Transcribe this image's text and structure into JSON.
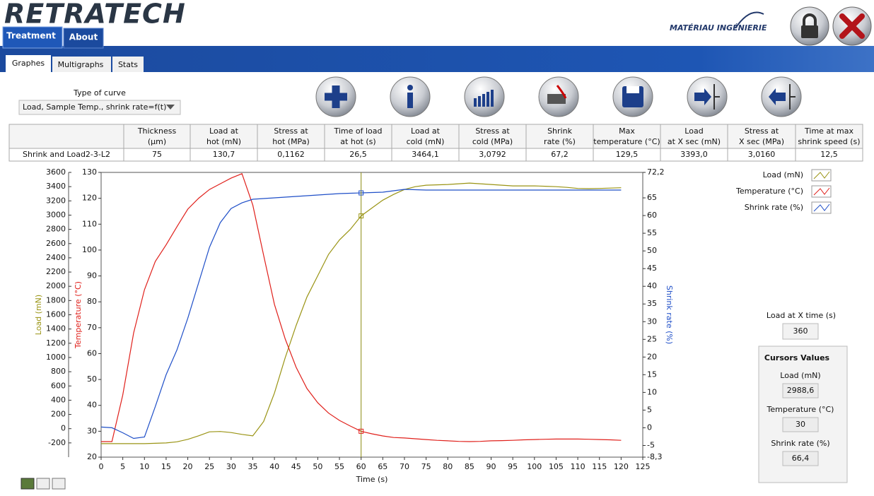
{
  "header": {
    "logo": "RETRATECH",
    "partner_logo": "MATÉRIAU INGÉNIERIE"
  },
  "tabs": [
    "Treatment",
    "About"
  ],
  "subtabs": [
    "Graphes",
    "Multigraphs",
    "Stats"
  ],
  "curve_selector": {
    "label": "Type of curve",
    "value": "Load, Sample Temp., shrink rate=f(t)"
  },
  "table": {
    "headers": [
      [
        "Thickness",
        "(µm)"
      ],
      [
        "Load at",
        "hot (mN)"
      ],
      [
        "Stress at",
        "hot (MPa)"
      ],
      [
        "Time of load",
        "at hot (s)"
      ],
      [
        "Load at",
        "cold (mN)"
      ],
      [
        "Stress at",
        "cold (MPa)"
      ],
      [
        "Shrink",
        "rate (%)"
      ],
      [
        "Max",
        "temperature (°C)"
      ],
      [
        "Load",
        "at X sec (mN)"
      ],
      [
        "Stress at",
        "X sec (MPa)"
      ],
      [
        "Time at max",
        "shrink speed (s)"
      ]
    ],
    "rows": [
      [
        "Shrink and Load2-3-L2",
        "75",
        "130,7",
        "0,1162",
        "26,5",
        "3464,1",
        "3,0792",
        "67,2",
        "129,5",
        "3393,0",
        "3,0160",
        "12,5"
      ]
    ]
  },
  "chart_data": {
    "type": "line",
    "xlabel": "Time (s)",
    "ylabel": "Load (mN)",
    "y2label": "Temperature (°C)",
    "y3label": "Shrink rate (%)",
    "xlim": [
      0,
      125
    ],
    "xticks": [
      0,
      5,
      10,
      15,
      20,
      25,
      30,
      35,
      40,
      45,
      50,
      55,
      60,
      65,
      70,
      75,
      80,
      85,
      90,
      95,
      100,
      105,
      110,
      115,
      120,
      125
    ],
    "ylim": [
      -400,
      3600
    ],
    "yticks": [
      -200,
      0,
      200,
      400,
      600,
      800,
      1000,
      1200,
      1400,
      1600,
      1800,
      2000,
      2200,
      2400,
      2600,
      2800,
      3000,
      3200,
      3400,
      3600
    ],
    "y2lim": [
      20,
      130
    ],
    "y2ticks": [
      20,
      30,
      40,
      50,
      60,
      70,
      80,
      90,
      100,
      110,
      120,
      130
    ],
    "y3lim": [
      -8.3,
      72.2
    ],
    "y3ticks": [
      {
        "value": -8.3,
        "label": "-8,3"
      },
      -5,
      0,
      5,
      10,
      15,
      20,
      25,
      30,
      35,
      40,
      45,
      50,
      55,
      60,
      65,
      {
        "value": 72.2,
        "label": "72,2"
      }
    ],
    "cursor_x": 60,
    "x": [
      0,
      2.5,
      5,
      7.5,
      10,
      12.5,
      15,
      17.5,
      20,
      22.5,
      25,
      27.5,
      30,
      32.5,
      35,
      37.5,
      40,
      42.5,
      45,
      47.5,
      50,
      52.5,
      55,
      57.5,
      60,
      62.5,
      65,
      67.5,
      70,
      72.5,
      75,
      77.5,
      80,
      82.5,
      85,
      87.5,
      90,
      92.5,
      95,
      97.5,
      100,
      102.5,
      105,
      107.5,
      110,
      112.5,
      115,
      117.5,
      120
    ],
    "series": [
      {
        "name": "Load (mN)",
        "color": "#9a9414",
        "axis": "y",
        "values": [
          -210,
          -210,
          -210,
          -210,
          -210,
          -205,
          -200,
          -185,
          -150,
          -100,
          -45,
          -40,
          -55,
          -80,
          -100,
          100,
          500,
          1000,
          1450,
          1850,
          2150,
          2450,
          2650,
          2800,
          2988.6,
          3100,
          3210,
          3290,
          3360,
          3400,
          3420,
          3425,
          3430,
          3440,
          3450,
          3440,
          3430,
          3420,
          3410,
          3410,
          3410,
          3405,
          3400,
          3390,
          3375,
          3372,
          3375,
          3380,
          3385
        ]
      },
      {
        "name": "Temperature (°C)",
        "color": "#e0201b",
        "axis": "y2",
        "values": [
          26,
          26,
          44,
          68,
          84.7,
          95.6,
          102,
          109,
          115.8,
          120,
          123.4,
          125.6,
          127.8,
          129.5,
          117.4,
          98,
          79,
          65.6,
          54.7,
          46.5,
          41,
          37,
          34.2,
          32,
          30,
          29,
          28.2,
          27.6,
          27.4,
          27.1,
          26.8,
          26.5,
          26.3,
          26.1,
          26,
          26.1,
          26.3,
          26.4,
          26.5,
          26.7,
          26.8,
          26.9,
          27,
          27,
          27,
          26.9,
          26.8,
          26.7,
          26.5
        ]
      },
      {
        "name": "Shrink rate (%)",
        "color": "#1f4fc8",
        "axis": "y3",
        "values": [
          0.2,
          0,
          -1.4,
          -3,
          -2.6,
          6,
          15,
          22,
          31,
          41,
          51,
          58,
          62,
          63.6,
          64.6,
          64.8,
          65,
          65.2,
          65.4,
          65.6,
          65.8,
          66,
          66.2,
          66.3,
          66.4,
          66.5,
          66.6,
          67,
          67.4,
          67.3,
          67.2,
          67.2,
          67.2,
          67.2,
          67.2,
          67.2,
          67.2,
          67.2,
          67.2,
          67.2,
          67.2,
          67.2,
          67.2,
          67.2,
          67.2,
          67.2,
          67.2,
          67.2,
          67.2
        ]
      }
    ]
  },
  "side_panel": {
    "x_time_label": "Load at X time (s)",
    "x_time_value": "360",
    "cursors_title": "Cursors Values",
    "cursors": [
      {
        "label": "Load (mN)",
        "value": "2988,6"
      },
      {
        "label": "Temperature (°C)",
        "value": "30"
      },
      {
        "label": "Shrink rate (%)",
        "value": "66,4"
      }
    ]
  }
}
